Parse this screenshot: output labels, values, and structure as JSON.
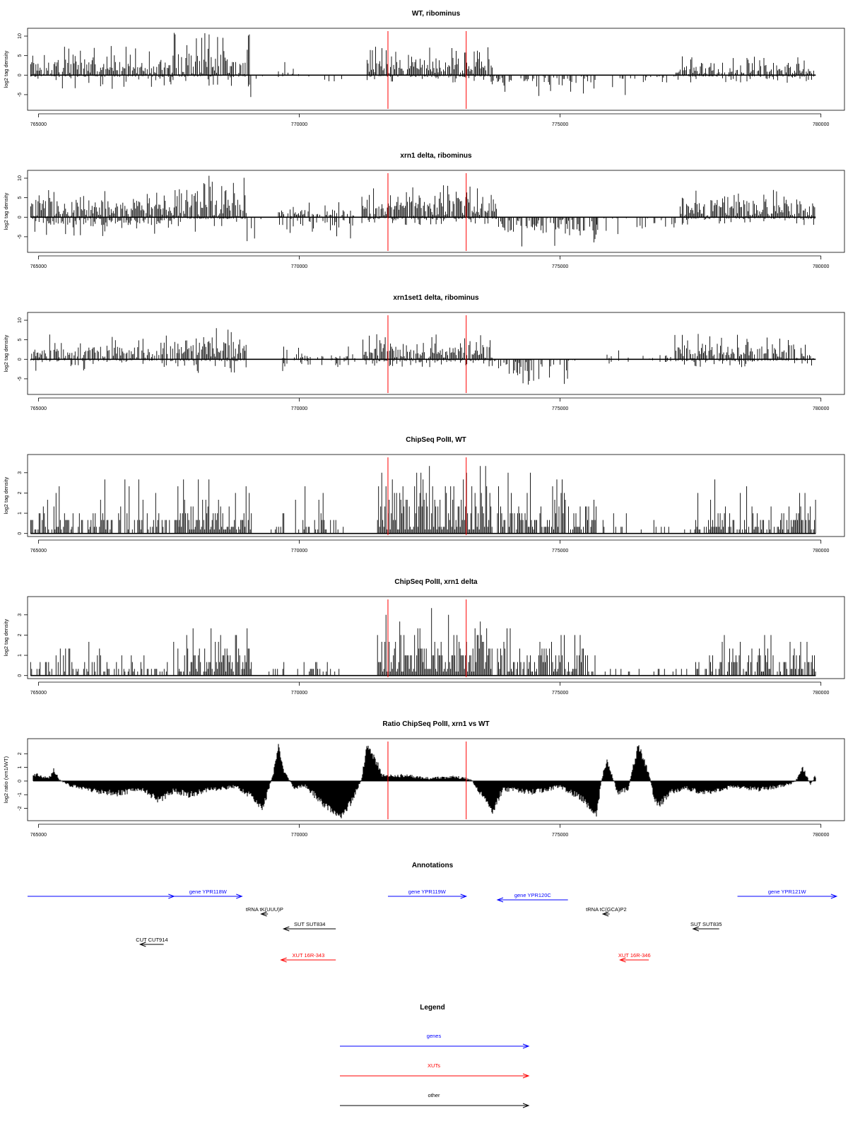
{
  "chart_data": [
    {
      "type": "bar",
      "title": "WT, ribominus",
      "ylabel": "log2 tag density",
      "xlim": [
        764900,
        779950
      ],
      "ylim": [
        -9,
        12
      ],
      "yticks": [
        -5,
        0,
        5,
        10
      ],
      "xticks": [
        765000,
        770000,
        775000,
        780000
      ],
      "red_lines_x": [
        771700,
        773200
      ],
      "segments": [
        {
          "x": [
            764850,
            767500
          ],
          "pos": [
            3.5,
            7.5
          ],
          "neg": [
            0,
            3.5
          ],
          "density": 0.8
        },
        {
          "x": [
            767500,
            769050
          ],
          "pos": [
            6.5,
            11.5
          ],
          "neg": [
            0,
            3
          ],
          "density": 1
        },
        {
          "x": [
            769050,
            769300
          ],
          "pos": [
            0,
            0
          ],
          "neg": [
            2,
            6
          ],
          "density": 0.6
        },
        {
          "x": [
            769600,
            770000
          ],
          "pos": [
            1,
            3.5
          ],
          "neg": [
            0,
            3
          ],
          "density": 0.5
        },
        {
          "x": [
            770000,
            771300
          ],
          "pos": [
            0,
            0
          ],
          "neg": [
            0,
            2
          ],
          "density": 0.3
        },
        {
          "x": [
            771300,
            773700
          ],
          "pos": [
            4.5,
            7.5
          ],
          "neg": [
            0,
            2
          ],
          "density": 1
        },
        {
          "x": [
            773700,
            775700
          ],
          "pos": [
            0,
            0
          ],
          "neg": [
            3,
            5.5
          ],
          "density": 0.9
        },
        {
          "x": [
            775700,
            777200
          ],
          "pos": [
            0,
            0
          ],
          "neg": [
            1,
            6
          ],
          "density": 0.3
        },
        {
          "x": [
            777200,
            779900
          ],
          "pos": [
            3,
            5
          ],
          "neg": [
            0,
            2
          ],
          "density": 0.9
        }
      ]
    },
    {
      "type": "bar",
      "title": "xrn1 delta, ribominus",
      "ylabel": "log2 tag density",
      "xlim": [
        764900,
        779950
      ],
      "ylim": [
        -9,
        12
      ],
      "yticks": [
        -5,
        0,
        5,
        10
      ],
      "xticks": [
        765000,
        770000,
        775000,
        780000
      ],
      "red_lines_x": [
        771700,
        773200
      ],
      "segments": [
        {
          "x": [
            764850,
            767600
          ],
          "pos": [
            5,
            7
          ],
          "neg": [
            2,
            5
          ],
          "density": 1
        },
        {
          "x": [
            767600,
            769000
          ],
          "pos": [
            7,
            11
          ],
          "neg": [
            0,
            4
          ],
          "density": 1
        },
        {
          "x": [
            769000,
            769300
          ],
          "pos": [
            0,
            0
          ],
          "neg": [
            3,
            7
          ],
          "density": 0.6
        },
        {
          "x": [
            769600,
            771100
          ],
          "pos": [
            2,
            4
          ],
          "neg": [
            3,
            5.5
          ],
          "density": 0.8
        },
        {
          "x": [
            771200,
            773800
          ],
          "pos": [
            7,
            8.5
          ],
          "neg": [
            0,
            2
          ],
          "density": 1
        },
        {
          "x": [
            773800,
            775700
          ],
          "pos": [
            0,
            0
          ],
          "neg": [
            4,
            8
          ],
          "density": 1
        },
        {
          "x": [
            775700,
            777300
          ],
          "pos": [
            0,
            0
          ],
          "neg": [
            3,
            5
          ],
          "density": 0.6
        },
        {
          "x": [
            777300,
            779900
          ],
          "pos": [
            5,
            7
          ],
          "neg": [
            0,
            2
          ],
          "density": 1
        }
      ]
    },
    {
      "type": "bar",
      "title": "xrn1set1 delta, ribominus",
      "ylabel": "log2 tag density",
      "xlim": [
        764900,
        779950
      ],
      "ylim": [
        -9,
        12
      ],
      "yticks": [
        -5,
        0,
        5,
        10
      ],
      "xticks": [
        765000,
        770000,
        775000,
        780000
      ],
      "red_lines_x": [
        771700,
        773200
      ],
      "segments": [
        {
          "x": [
            764850,
            767700
          ],
          "pos": [
            3.5,
            6.5
          ],
          "neg": [
            0,
            3
          ],
          "density": 0.8
        },
        {
          "x": [
            767700,
            769000
          ],
          "pos": [
            5,
            8
          ],
          "neg": [
            0,
            3.5
          ],
          "density": 1
        },
        {
          "x": [
            769600,
            771100
          ],
          "pos": [
            1.5,
            3.5
          ],
          "neg": [
            1.5,
            4.5
          ],
          "density": 0.5
        },
        {
          "x": [
            771200,
            773700
          ],
          "pos": [
            4.5,
            6.5
          ],
          "neg": [
            0,
            2
          ],
          "density": 1
        },
        {
          "x": [
            773700,
            775300
          ],
          "pos": [
            0,
            0
          ],
          "neg": [
            4,
            6.5
          ],
          "density": 0.9
        },
        {
          "x": [
            775900,
            777200
          ],
          "pos": [
            1,
            2.5
          ],
          "neg": [
            1,
            3
          ],
          "density": 0.3
        },
        {
          "x": [
            777200,
            779900
          ],
          "pos": [
            4,
            6.5
          ],
          "neg": [
            0,
            2
          ],
          "density": 0.9
        }
      ]
    },
    {
      "type": "bar",
      "title": "ChipSeq PolII, WT",
      "ylabel": "log2 tag density",
      "xlim": [
        764900,
        779950
      ],
      "ylim": [
        -0.15,
        3.9
      ],
      "yticks": [
        0,
        1,
        2,
        3
      ],
      "xticks": [
        765000,
        770000,
        775000,
        780000
      ],
      "red_lines_x": [
        771700,
        773200
      ],
      "segments": [
        {
          "x": [
            764850,
            767700
          ],
          "pos": [
            1.2,
            2.8
          ],
          "neg": [
            0,
            0
          ],
          "density": 0.6
        },
        {
          "x": [
            767700,
            769100
          ],
          "pos": [
            1.8,
            2.8
          ],
          "neg": [
            0,
            0
          ],
          "density": 0.9
        },
        {
          "x": [
            769400,
            770900
          ],
          "pos": [
            1,
            2.6
          ],
          "neg": [
            0,
            0
          ],
          "density": 0.4
        },
        {
          "x": [
            771500,
            773700
          ],
          "pos": [
            2.8,
            3.7
          ],
          "neg": [
            0,
            0
          ],
          "density": 1
        },
        {
          "x": [
            773800,
            775700
          ],
          "pos": [
            2,
            3.4
          ],
          "neg": [
            0,
            0
          ],
          "density": 0.8
        },
        {
          "x": [
            775700,
            777500
          ],
          "pos": [
            0.8,
            1.5
          ],
          "neg": [
            0,
            0
          ],
          "density": 0.15
        },
        {
          "x": [
            777500,
            779900
          ],
          "pos": [
            1.5,
            2.6
          ],
          "neg": [
            0,
            0
          ],
          "density": 0.7
        }
      ]
    },
    {
      "type": "bar",
      "title": "ChipSeq PolII, xrn1 delta",
      "ylabel": "log2 tag density",
      "xlim": [
        764900,
        779950
      ],
      "ylim": [
        -0.15,
        3.9
      ],
      "yticks": [
        0,
        1,
        2,
        3
      ],
      "xticks": [
        765000,
        770000,
        775000,
        780000
      ],
      "red_lines_x": [
        771700,
        773200
      ],
      "segments": [
        {
          "x": [
            764850,
            767700
          ],
          "pos": [
            1,
            1.8
          ],
          "neg": [
            0,
            0
          ],
          "density": 0.5
        },
        {
          "x": [
            767700,
            769100
          ],
          "pos": [
            1.6,
            2.4
          ],
          "neg": [
            0,
            0
          ],
          "density": 0.9
        },
        {
          "x": [
            769400,
            770900
          ],
          "pos": [
            0.6,
            1.8
          ],
          "neg": [
            0,
            0
          ],
          "density": 0.3
        },
        {
          "x": [
            771500,
            773700
          ],
          "pos": [
            2.4,
            3.2
          ],
          "neg": [
            0,
            0
          ],
          "density": 1
        },
        {
          "x": [
            773800,
            775700
          ],
          "pos": [
            1.6,
            2.4
          ],
          "neg": [
            0,
            0
          ],
          "density": 0.8
        },
        {
          "x": [
            775700,
            777600
          ],
          "pos": [
            0.4,
            1.2
          ],
          "neg": [
            0,
            0
          ],
          "density": 0.15
        },
        {
          "x": [
            777600,
            779900
          ],
          "pos": [
            1.2,
            1.9
          ],
          "neg": [
            0,
            0
          ],
          "density": 0.7
        }
      ]
    },
    {
      "type": "area",
      "title": "Ratio ChipSeq PolII, xrn1 vs WT",
      "ylabel": "log2 ratio (xrn1/WT)",
      "xlim": [
        764900,
        779950
      ],
      "ylim": [
        -2.9,
        3.1
      ],
      "yticks": [
        -2,
        -1,
        0,
        1,
        2
      ],
      "xticks": [
        765000,
        770000,
        775000,
        780000
      ],
      "red_lines_x": [
        771700,
        773200
      ],
      "profile_x": [
        764900,
        765200,
        765300,
        765400,
        765600,
        766000,
        766500,
        767000,
        767300,
        767600,
        767900,
        768300,
        768800,
        769100,
        769300,
        769500,
        769600,
        769700,
        769900,
        770100,
        770500,
        770800,
        771000,
        771200,
        771250,
        771300,
        771400,
        771500,
        771600,
        771700,
        772000,
        772500,
        773000,
        773300,
        773500,
        773700,
        773900,
        774500,
        775000,
        775400,
        775700,
        775800,
        775900,
        776100,
        776300,
        776500,
        776700,
        776800,
        776900,
        777100,
        777400,
        777800,
        778300,
        778800,
        779200,
        779500,
        779650,
        779800,
        779900
      ],
      "profile_y": [
        0.5,
        0.2,
        0.8,
        0.1,
        -0.3,
        -0.7,
        -0.9,
        -0.6,
        -1.4,
        -0.7,
        -1.0,
        -0.6,
        -0.4,
        -1.2,
        -2.0,
        0.5,
        2.5,
        0.8,
        -0.5,
        -0.3,
        -1.8,
        -2.6,
        -1.5,
        0.2,
        1.5,
        2.7,
        2.0,
        1.2,
        0.4,
        0.4,
        0.4,
        0.2,
        0.3,
        0.1,
        -1.0,
        -2.3,
        -0.6,
        -0.8,
        -0.4,
        -1.2,
        -2.5,
        0.2,
        1.5,
        -0.8,
        -0.6,
        2.6,
        0.6,
        -1.2,
        -1.8,
        -0.8,
        -0.5,
        -0.9,
        -0.4,
        -0.6,
        -0.4,
        -0.1,
        0.9,
        -0.2,
        0.4
      ]
    }
  ],
  "annotations": {
    "title": "Annotations",
    "features": [
      {
        "label": "",
        "color": "#0000ff",
        "x_start": 764300,
        "x_end": 767600,
        "dir": "right",
        "row": 0
      },
      {
        "label": "gene YPR118W",
        "color": "#0000ff",
        "x_start": 767600,
        "x_end": 768900,
        "dir": "right",
        "row": 0
      },
      {
        "label": "gene YPR119W",
        "color": "#0000ff",
        "x_start": 771700,
        "x_end": 773200,
        "dir": "right",
        "row": 0
      },
      {
        "label": "gene YPR120C",
        "color": "#0000ff",
        "x_start": 773800,
        "x_end": 775150,
        "dir": "left",
        "row": 0.5
      },
      {
        "label": "gene YPR121W",
        "color": "#0000ff",
        "x_start": 778400,
        "x_end": 780300,
        "dir": "right",
        "row": 0
      },
      {
        "label": "tRNA tK(UUU)P",
        "color": "#000000",
        "x_start": 769270,
        "x_end": 769400,
        "dir": "left",
        "row": 1
      },
      {
        "label": "tRNA tC(GCA)P2",
        "color": "#000000",
        "x_start": 775820,
        "x_end": 775950,
        "dir": "left",
        "row": 1
      },
      {
        "label": "SUT SUT834",
        "color": "#000000",
        "x_start": 769700,
        "x_end": 770700,
        "dir": "left",
        "row": 2
      },
      {
        "label": "SUT SUT835",
        "color": "#000000",
        "x_start": 777550,
        "x_end": 778050,
        "dir": "left",
        "row": 2
      },
      {
        "label": "CUT CUT914",
        "color": "#000000",
        "x_start": 766950,
        "x_end": 767400,
        "dir": "left",
        "row": 3
      },
      {
        "label": "XUT 16R-343",
        "color": "#ff0000",
        "x_start": 769650,
        "x_end": 770700,
        "dir": "left",
        "row": 4
      },
      {
        "label": "XUT 16R-346",
        "color": "#ff0000",
        "x_start": 776150,
        "x_end": 776700,
        "dir": "left",
        "row": 4
      }
    ]
  },
  "legend": {
    "title": "Legend",
    "items": [
      {
        "label": "genes",
        "color": "#0000ff"
      },
      {
        "label": "XUTs",
        "color": "#ff0000"
      },
      {
        "label": "other",
        "color": "#000000"
      }
    ]
  }
}
